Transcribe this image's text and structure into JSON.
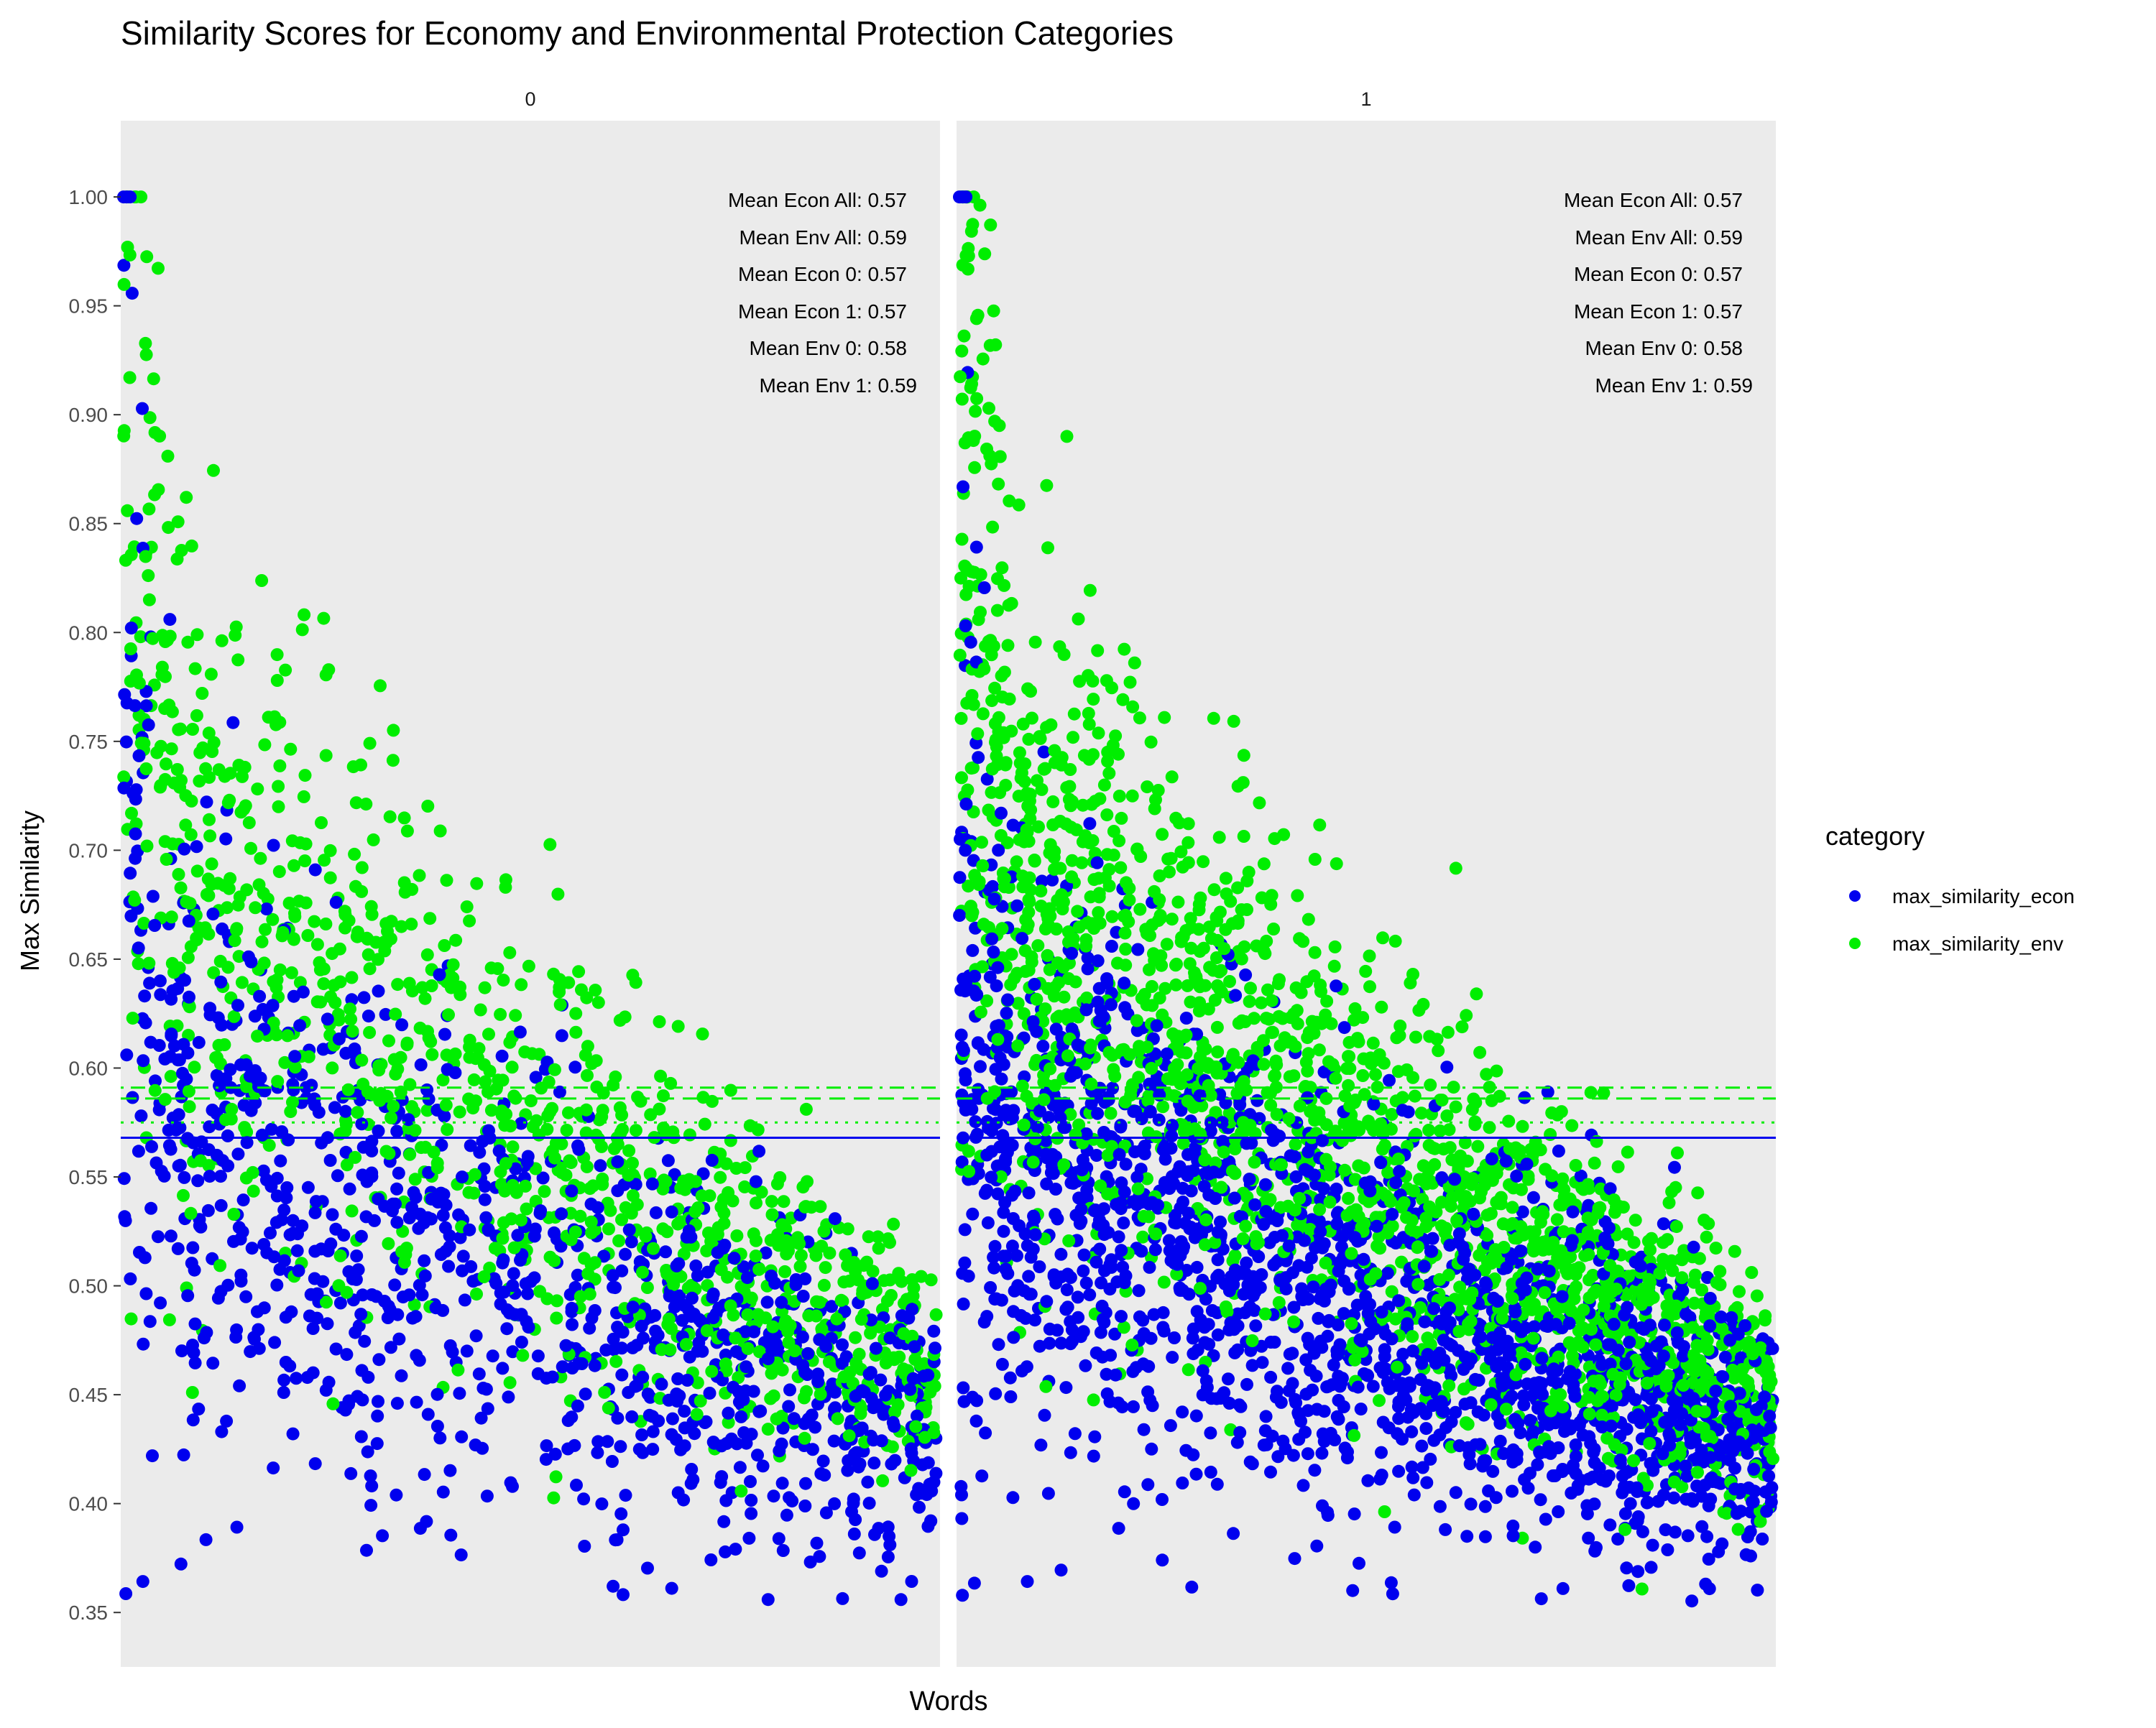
{
  "chart_data": {
    "type": "scatter",
    "title": "Similarity Scores for Economy and Environmental Protection Categories",
    "xlabel": "Words",
    "ylabel": "Max Similarity",
    "ylim": [
      0.325,
      1.035
    ],
    "yticks": [
      "0.35",
      "0.40",
      "0.45",
      "0.50",
      "0.55",
      "0.60",
      "0.65",
      "0.70",
      "0.75",
      "0.80",
      "0.85",
      "0.90",
      "0.95",
      "1.00"
    ],
    "grid": false,
    "legend": {
      "title": "category",
      "placement": "right",
      "entries": [
        {
          "label": "max_similarity_econ",
          "color": "#0000ee"
        },
        {
          "label": "max_similarity_env",
          "color": "#00ee00"
        }
      ]
    },
    "colors": {
      "econ": "#0000ee",
      "env": "#00ee00",
      "panel": "#ebebeb"
    },
    "reference_lines": [
      {
        "value": 0.568,
        "color": "#0000ee",
        "style": "solid"
      },
      {
        "value": 0.568,
        "color": "#0000ee",
        "style": "dashed"
      },
      {
        "value": 0.586,
        "color": "#00ee00",
        "style": "dashed"
      },
      {
        "value": 0.575,
        "color": "#00ee00",
        "style": "dotted"
      },
      {
        "value": 0.591,
        "color": "#00ee00",
        "style": "dotdash"
      }
    ],
    "panels": [
      {
        "strip": "0",
        "annotations": [
          "Mean Econ All: 0.57",
          "Mean Env All: 0.59",
          "Mean Econ 0: 0.57",
          "Mean Econ 1: 0.57",
          "Mean Env 0: 0.58",
          "Mean Env 1: 0.59"
        ],
        "point_counts": {
          "econ": 1100,
          "env": 1100
        },
        "trend": {
          "econ": {
            "start": 0.6,
            "end": 0.43,
            "spread_start": 0.075,
            "spread_end": 0.03
          },
          "env": {
            "start": 0.74,
            "end": 0.46,
            "spread_start": 0.085,
            "spread_end": 0.025
          }
        }
      },
      {
        "strip": "1",
        "annotations": [
          "Mean Econ All: 0.57",
          "Mean Env All: 0.59",
          "Mean Econ 0: 0.57",
          "Mean Econ 1: 0.57",
          "Mean Env 0: 0.58",
          "Mean Env 1: 0.59"
        ],
        "point_counts": {
          "econ": 1900,
          "env": 1900
        },
        "trend": {
          "econ": {
            "start": 0.59,
            "end": 0.43,
            "spread_start": 0.07,
            "spread_end": 0.03
          },
          "env": {
            "start": 0.73,
            "end": 0.45,
            "spread_start": 0.08,
            "spread_end": 0.025
          }
        }
      }
    ]
  }
}
